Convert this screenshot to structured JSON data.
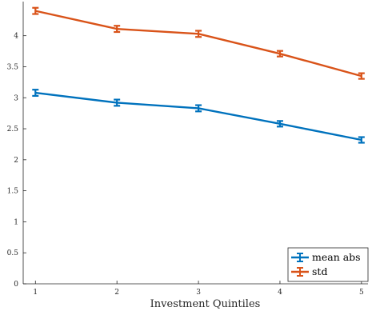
{
  "chart_data": {
    "type": "line",
    "title": "",
    "xlabel": "Investment Quintiles",
    "ylabel": "",
    "x": [
      1,
      2,
      3,
      4,
      5
    ],
    "xticks": [
      "1",
      "2",
      "3",
      "4",
      "5"
    ],
    "yticks": [
      "0",
      "0.5",
      "1",
      "1.5",
      "2",
      "2.5",
      "3",
      "3.5",
      "4"
    ],
    "xlim": [
      0.85,
      5.08
    ],
    "ylim": [
      0,
      4.55
    ],
    "grid": false,
    "legend_position": "bottom-right",
    "series": [
      {
        "name": "mean abs",
        "color": "#0072BD",
        "values": [
          3.08,
          2.92,
          2.83,
          2.58,
          2.32
        ],
        "error": [
          0.05,
          0.05,
          0.05,
          0.045,
          0.045
        ]
      },
      {
        "name": "std",
        "color": "#D95319",
        "values": [
          4.4,
          4.11,
          4.03,
          3.71,
          3.35
        ],
        "error": [
          0.05,
          0.05,
          0.05,
          0.045,
          0.045
        ]
      }
    ]
  }
}
